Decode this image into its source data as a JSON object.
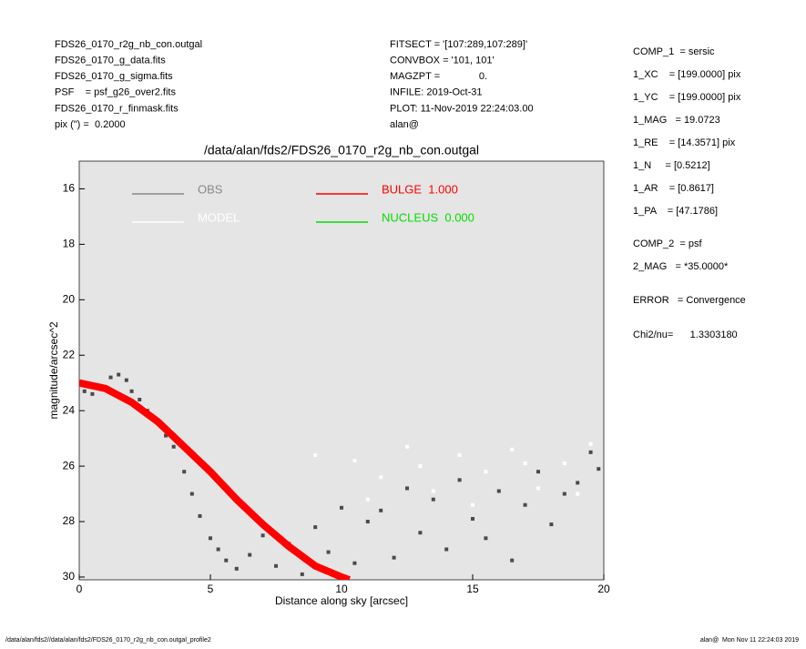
{
  "header": {
    "left": [
      "FDS26_0170_r2g_nb_con.outgal",
      "FDS26_0170_g_data.fits",
      "FDS26_0170_g_sigma.fits",
      "PSF    = psf_g26_over2.fits",
      "FDS26_0170_r_finmask.fits",
      "pix (\") =  0.2000"
    ],
    "middle": [
      "FITSECT = '[107:289,107:289]'",
      "CONVBOX = '101, 101'",
      "MAGZPT =              0.",
      "INFILE: 2019-Oct-31",
      "PLOT: 11-Nov-2019 22:24:03.00",
      "alan@"
    ],
    "right": [
      "COMP_1  = sersic",
      "1_XC    = [199.0000] pix",
      "1_YC    = [199.0000] pix",
      "1_MAG   = 19.0723",
      "1_RE    = [14.3571] pix",
      "1_N     = [0.5212]",
      "1_AR    = [0.8617]",
      "1_PA    = [47.1786]",
      "COMP_2  = psf",
      "2_MAG   = *35.0000*",
      "ERROR   = Convergence",
      "Chi2/nu=      1.3303180"
    ]
  },
  "footer": {
    "left": "/data/alan/fds2//data/alan/fds2/FDS26_0170_r2g_nb_con.outgal_profile2",
    "right": "alan@  Mon Nov 11 22:24:03 2019"
  },
  "chart_data": {
    "type": "scatter",
    "title": "/data/alan/fds2/FDS26_0170_r2g_nb_con.outgal",
    "xlabel": "Distance along sky [arcsec]",
    "ylabel": "magnitude/arcsec^2",
    "xlim": [
      0,
      20
    ],
    "xticks": [
      0,
      5,
      10,
      15,
      20
    ],
    "ylim": [
      30.1,
      15.0
    ],
    "yticks": [
      16,
      18,
      20,
      22,
      24,
      26,
      28,
      30
    ],
    "background": "#e5e5e5",
    "series": [
      {
        "name": "OBS",
        "color": "#4a4a4a",
        "legend_color": "#888888",
        "mark": "points",
        "x": [
          0.2,
          0.5,
          0.8,
          1.2,
          1.5,
          1.8,
          2.0,
          2.3,
          2.6,
          3.0,
          3.3,
          3.6,
          4.0,
          4.3,
          4.6,
          5.0,
          5.3,
          5.6,
          6.0,
          6.5,
          7.0,
          7.5,
          8.0,
          8.5,
          9.0,
          9.5,
          10,
          10.5,
          11,
          11.5,
          12,
          12.5,
          13,
          13.5,
          14,
          14.5,
          15,
          15.5,
          16,
          16.5,
          17,
          17.5,
          18,
          18.5,
          19,
          19.5,
          19.8
        ],
        "y": [
          23.3,
          23.4,
          23.2,
          22.8,
          22.7,
          22.9,
          23.3,
          23.6,
          24.0,
          24.4,
          24.9,
          25.3,
          26.2,
          27.0,
          27.8,
          28.6,
          29.0,
          29.4,
          29.7,
          29.2,
          28.5,
          29.6,
          28.8,
          29.9,
          28.2,
          29.1,
          27.5,
          29.5,
          28.0,
          27.6,
          29.3,
          26.8,
          28.4,
          27.2,
          29.0,
          26.5,
          27.9,
          28.6,
          26.9,
          29.4,
          27.4,
          26.2,
          28.1,
          27.0,
          26.6,
          25.5,
          26.1
        ]
      },
      {
        "name": "MODEL",
        "color": "#ffffff",
        "legend_color": "#ffffff",
        "mark": "points",
        "x": [
          0.5,
          1.5,
          2.5,
          3.5,
          4.5,
          5.5,
          6.5,
          7.5,
          8.5,
          9.5,
          10.5,
          11.5,
          12.5,
          13.5,
          14.5,
          15.5,
          16.5,
          17.5,
          18.5,
          19.5,
          9,
          11,
          13,
          15,
          17,
          19
        ],
        "y": [
          23.1,
          23.4,
          23.9,
          24.7,
          25.6,
          26.6,
          27.6,
          28.5,
          29.2,
          29.9,
          25.8,
          26.4,
          25.3,
          26.9,
          25.6,
          26.2,
          25.4,
          26.8,
          25.9,
          25.2,
          25.6,
          27.2,
          26.0,
          27.4,
          25.9,
          27.0
        ]
      },
      {
        "name": "BULGE  1.000",
        "color": "#ff0000",
        "legend_color": "#ff0000",
        "mark": "line",
        "x": [
          0,
          1,
          2,
          3,
          4,
          5,
          6,
          7,
          8,
          9,
          10,
          10.3
        ],
        "y": [
          23.0,
          23.2,
          23.7,
          24.4,
          25.3,
          26.2,
          27.2,
          28.1,
          28.9,
          29.6,
          30.0,
          30.1
        ]
      },
      {
        "name": "NUCLEUS  0.000",
        "color": "#00dd00",
        "legend_color": "#00dd00",
        "mark": "line",
        "x": [],
        "y": []
      }
    ]
  }
}
